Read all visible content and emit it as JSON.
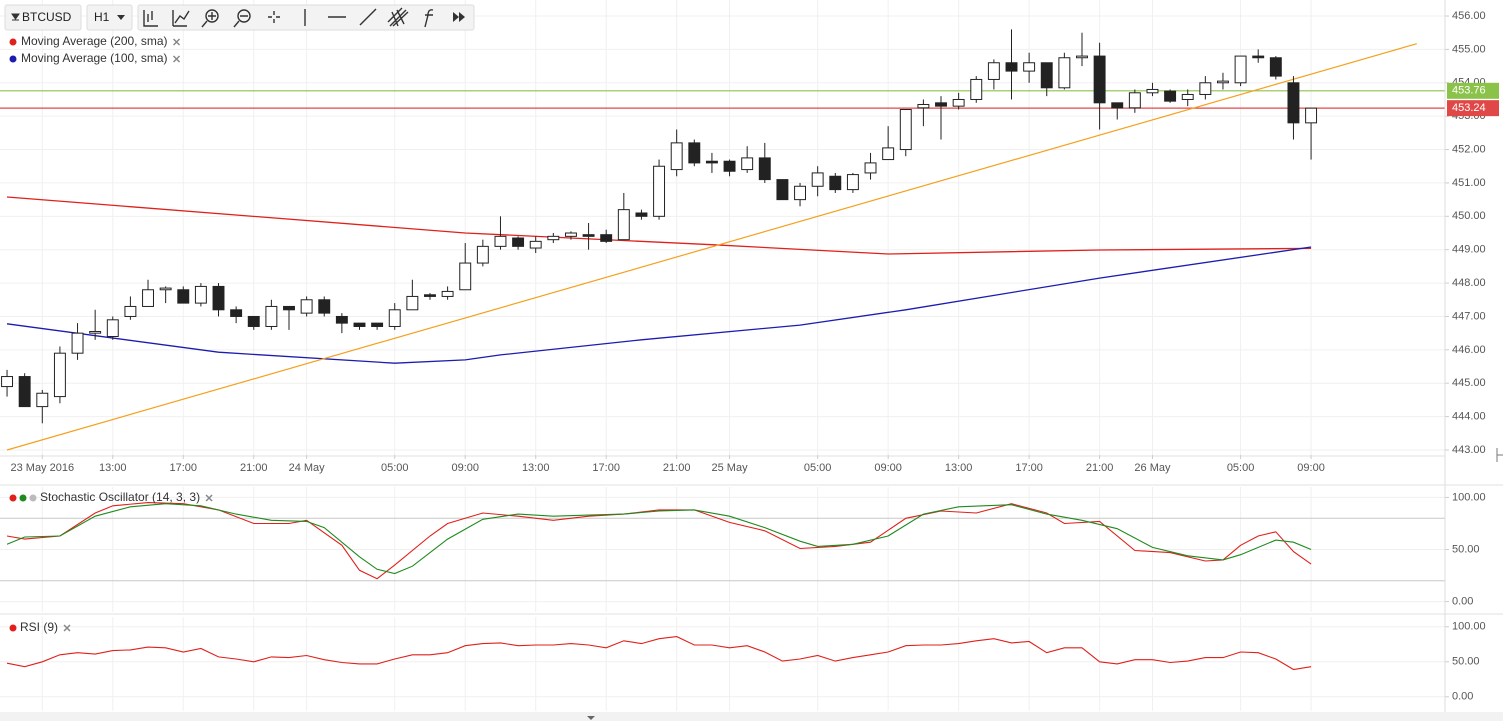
{
  "toolbar": {
    "symbol": "BTCUSD",
    "interval": "H1"
  },
  "chart_data": [
    {
      "type": "candlestick",
      "x": [
        7,
        8,
        9,
        10,
        11,
        12,
        13,
        14,
        15,
        16,
        17,
        18,
        19,
        20,
        21,
        22,
        23,
        24,
        25,
        26,
        27,
        28,
        29,
        30,
        31,
        32,
        33,
        34,
        35,
        36,
        37,
        38,
        39,
        40,
        41,
        42,
        43,
        44,
        45,
        46,
        47,
        48,
        49,
        50,
        51,
        52,
        53,
        54,
        55,
        56,
        57,
        58,
        59,
        60,
        61,
        62,
        63,
        64,
        65,
        66,
        67,
        68,
        69,
        70,
        71,
        72,
        73,
        74,
        75,
        76,
        77,
        78,
        79,
        80,
        81
      ],
      "open": [
        444.9,
        445.2,
        444.3,
        444.6,
        445.9,
        446.5,
        446.4,
        447.0,
        447.3,
        447.8,
        447.8,
        447.4,
        447.9,
        447.2,
        447.0,
        446.7,
        447.3,
        447.1,
        447.5,
        447.0,
        446.8,
        446.8,
        446.7,
        447.2,
        447.65,
        447.6,
        447.8,
        448.6,
        449.1,
        449.35,
        449.05,
        449.3,
        449.4,
        449.45,
        449.45,
        449.3,
        450.1,
        450.0,
        451.4,
        452.2,
        451.65,
        451.65,
        451.4,
        451.75,
        451.1,
        450.5,
        450.9,
        451.2,
        450.8,
        451.3,
        451.7,
        452.0,
        453.25,
        453.4,
        453.3,
        453.5,
        454.1,
        454.6,
        454.35,
        454.6,
        453.85,
        454.75,
        454.8,
        453.4,
        453.25,
        453.7,
        453.75,
        453.5,
        453.65,
        454.0,
        454.0,
        454.8,
        454.75,
        454.0,
        452.8
      ],
      "high": [
        445.4,
        445.3,
        444.8,
        446.1,
        446.8,
        447.2,
        447.0,
        447.6,
        448.1,
        447.9,
        447.9,
        448.0,
        448.0,
        447.3,
        447.0,
        447.5,
        447.3,
        447.6,
        447.6,
        447.1,
        446.8,
        446.8,
        447.4,
        448.1,
        447.7,
        447.9,
        449.2,
        449.3,
        450.0,
        449.4,
        449.4,
        449.5,
        449.55,
        449.8,
        449.6,
        450.7,
        450.2,
        451.7,
        452.6,
        452.3,
        451.9,
        451.7,
        452.1,
        452.2,
        451.1,
        451.0,
        451.5,
        451.3,
        451.3,
        451.9,
        452.7,
        453.2,
        453.5,
        453.6,
        453.7,
        454.2,
        454.7,
        455.6,
        454.9,
        454.6,
        454.9,
        455.5,
        455.2,
        453.4,
        453.8,
        454.0,
        453.8,
        453.8,
        454.2,
        454.3,
        454.8,
        455.0,
        454.8,
        454.2,
        453.24
      ],
      "low": [
        444.6,
        444.3,
        443.8,
        444.4,
        445.7,
        446.3,
        446.3,
        446.9,
        447.3,
        447.4,
        447.4,
        447.3,
        447.0,
        446.8,
        446.6,
        446.6,
        446.6,
        447.0,
        447.0,
        446.5,
        446.6,
        446.6,
        446.6,
        447.2,
        447.5,
        447.5,
        447.8,
        448.5,
        449.0,
        449.0,
        448.9,
        449.2,
        449.3,
        449.0,
        449.2,
        449.3,
        449.9,
        449.9,
        451.2,
        451.5,
        451.3,
        451.2,
        451.3,
        451.0,
        450.5,
        450.3,
        450.6,
        450.7,
        450.7,
        451.1,
        451.7,
        451.8,
        452.7,
        452.3,
        453.2,
        453.4,
        453.8,
        453.5,
        454.0,
        453.6,
        453.8,
        454.5,
        452.6,
        452.9,
        453.1,
        453.6,
        453.4,
        453.3,
        453.5,
        453.8,
        453.9,
        454.6,
        454.1,
        452.3,
        451.7
      ],
      "close": [
        445.2,
        444.3,
        444.7,
        445.9,
        446.5,
        446.55,
        446.9,
        447.3,
        447.8,
        447.85,
        447.4,
        447.9,
        447.2,
        447.0,
        446.7,
        447.3,
        447.2,
        447.5,
        447.1,
        446.8,
        446.7,
        446.7,
        447.2,
        447.6,
        447.6,
        447.75,
        448.6,
        449.1,
        449.4,
        449.1,
        449.25,
        449.4,
        449.5,
        449.4,
        449.25,
        450.2,
        450.0,
        451.5,
        452.2,
        451.6,
        451.6,
        451.35,
        451.75,
        451.1,
        450.5,
        450.9,
        451.3,
        450.8,
        451.25,
        451.6,
        452.05,
        453.2,
        453.35,
        453.3,
        453.5,
        454.1,
        454.6,
        454.35,
        454.6,
        453.85,
        454.75,
        454.8,
        453.4,
        453.25,
        453.7,
        453.8,
        453.45,
        453.65,
        454.0,
        454.05,
        454.8,
        454.75,
        454.2,
        452.8,
        453.24
      ],
      "up_color": "#ffffff",
      "down_color": "#222222",
      "series": [
        {
          "name": "Moving Average (200, sma)",
          "color": "#e0201b",
          "x": [
            7,
            33,
            47,
            57,
            69,
            81
          ],
          "values": [
            450.58,
            449.5,
            449.15,
            448.87,
            448.99,
            449.04
          ]
        },
        {
          "name": "Moving Average (100, sma)",
          "color": "#1c1cb0",
          "x": [
            7,
            19,
            29,
            33,
            35,
            43,
            52,
            58,
            69,
            81
          ],
          "values": [
            446.78,
            445.93,
            445.6,
            445.7,
            445.85,
            446.3,
            446.74,
            447.2,
            448.15,
            449.08
          ]
        }
      ],
      "trend_lines": [
        {
          "color": "#f5a01e",
          "x": [
            7,
            87
          ],
          "values": [
            443.0,
            455.17
          ]
        }
      ],
      "price_lines": [
        {
          "value": 453.76,
          "color": "#8bc34a"
        },
        {
          "value": 453.24,
          "color": "#e04848"
        }
      ],
      "xlim": [
        6.6,
        88.6
      ],
      "ylim": [
        442.85,
        456.48
      ],
      "xticks": [
        {
          "value": 9,
          "label": "23 May 2016"
        },
        {
          "value": 13,
          "label": "13:00"
        },
        {
          "value": 17,
          "label": "17:00"
        },
        {
          "value": 21,
          "label": "21:00"
        },
        {
          "value": 24,
          "label": "24 May"
        },
        {
          "value": 29,
          "label": "05:00"
        },
        {
          "value": 33,
          "label": "09:00"
        },
        {
          "value": 37,
          "label": "13:00"
        },
        {
          "value": 41,
          "label": "17:00"
        },
        {
          "value": 45,
          "label": "21:00"
        },
        {
          "value": 48,
          "label": "25 May"
        },
        {
          "value": 53,
          "label": "05:00"
        },
        {
          "value": 57,
          "label": "09:00"
        },
        {
          "value": 61,
          "label": "13:00"
        },
        {
          "value": 65,
          "label": "17:00"
        },
        {
          "value": 69,
          "label": "21:00"
        },
        {
          "value": 72,
          "label": "26 May"
        },
        {
          "value": 77,
          "label": "05:00"
        },
        {
          "value": 81,
          "label": "09:00"
        }
      ],
      "yticks": [
        {
          "value": 456,
          "label": "456.00"
        },
        {
          "value": 455,
          "label": "455.00"
        },
        {
          "value": 454,
          "label": "454.00"
        },
        {
          "value": 453,
          "label": "453.00"
        },
        {
          "value": 452,
          "label": "452.00"
        },
        {
          "value": 451,
          "label": "451.00"
        },
        {
          "value": 450,
          "label": "450.00"
        },
        {
          "value": 449,
          "label": "449.00"
        },
        {
          "value": 448,
          "label": "448.00"
        },
        {
          "value": 447,
          "label": "447.00"
        },
        {
          "value": 446,
          "label": "446.00"
        },
        {
          "value": 445,
          "label": "445.00"
        },
        {
          "value": 444,
          "label": "444.00"
        },
        {
          "value": 443,
          "label": "443.00"
        }
      ],
      "grid": true
    },
    {
      "type": "line",
      "title": "Stochastic Oscillator (14, 3, 3)",
      "series": [
        {
          "color": "#e0201b",
          "x": [
            7,
            8,
            10,
            12,
            13,
            15,
            17,
            19,
            21,
            23,
            24,
            26,
            27,
            28,
            29,
            31,
            32,
            34,
            36,
            38,
            40,
            42,
            44,
            46,
            48,
            50,
            52,
            54,
            56,
            58,
            60,
            62,
            64,
            66,
            67,
            69,
            71,
            73,
            75,
            76,
            77,
            78,
            79,
            80,
            81
          ],
          "values": [
            63,
            60,
            63,
            85,
            92,
            95,
            94,
            88,
            75,
            75,
            78,
            54,
            30,
            22,
            35,
            63,
            75,
            85,
            82,
            78,
            82,
            84,
            88,
            88,
            76,
            68,
            51,
            53,
            57,
            80,
            87,
            85,
            94,
            85,
            75,
            77,
            49,
            47,
            39,
            40,
            54,
            63,
            67,
            48,
            36
          ]
        },
        {
          "color": "#1f8a1f",
          "x": [
            7,
            8,
            10,
            12,
            14,
            16,
            18,
            20,
            22,
            24,
            25,
            27,
            28,
            29,
            30,
            32,
            34,
            36,
            38,
            40,
            42,
            44,
            46,
            48,
            50,
            52,
            53,
            55,
            57,
            59,
            61,
            64,
            66,
            68,
            70,
            72,
            74,
            76,
            77,
            79,
            80,
            81
          ],
          "values": [
            55,
            62,
            63,
            82,
            91,
            94,
            92,
            84,
            78,
            77,
            71,
            43,
            31,
            27,
            34,
            60,
            79,
            84,
            82,
            83,
            84,
            87,
            88,
            82,
            71,
            58,
            53,
            55,
            63,
            84,
            91,
            93,
            84,
            78,
            70,
            52,
            44,
            40,
            45,
            59,
            57,
            50
          ]
        }
      ],
      "bands": [
        80,
        20
      ],
      "xlim": [
        6.6,
        88.6
      ],
      "ylim": [
        -10,
        110
      ],
      "yticks": [
        {
          "value": 100,
          "label": "100.00"
        },
        {
          "value": 50,
          "label": "50.00"
        },
        {
          "value": 0,
          "label": "0.00"
        }
      ],
      "grid": true
    },
    {
      "type": "line",
      "title": "RSI (9)",
      "series": [
        {
          "color": "#e0201b",
          "x": [
            7,
            8,
            9,
            10,
            11,
            12,
            13,
            14,
            15,
            16,
            17,
            18,
            19,
            20,
            21,
            22,
            23,
            24,
            25,
            26,
            27,
            28,
            29,
            30,
            31,
            32,
            33,
            34,
            35,
            36,
            37,
            38,
            39,
            40,
            41,
            42,
            43,
            44,
            45,
            46,
            47,
            48,
            49,
            50,
            51,
            52,
            53,
            54,
            55,
            56,
            57,
            58,
            59,
            60,
            61,
            62,
            63,
            64,
            65,
            66,
            67,
            68,
            69,
            70,
            71,
            72,
            73,
            74,
            75,
            76,
            77,
            78,
            79,
            80,
            81
          ],
          "values": [
            48,
            43,
            50,
            60,
            63,
            61,
            66,
            67,
            71,
            70,
            64,
            69,
            57,
            54,
            50,
            57,
            56,
            59,
            53,
            49,
            47,
            47,
            54,
            60,
            60,
            63,
            73,
            76,
            77,
            73,
            74,
            74,
            76,
            74,
            70,
            80,
            76,
            83,
            86,
            74,
            74,
            70,
            73,
            64,
            51,
            54,
            59,
            51,
            56,
            60,
            64,
            73,
            74,
            74,
            76,
            80,
            83,
            77,
            79,
            63,
            70,
            70,
            50,
            47,
            53,
            53,
            49,
            51,
            56,
            56,
            64,
            63,
            54,
            39,
            43
          ]
        }
      ],
      "xlim": [
        6.6,
        88.6
      ],
      "ylim": [
        -20,
        114
      ],
      "yticks": [
        {
          "value": 100,
          "label": "100.00"
        },
        {
          "value": 50,
          "label": "50.00"
        },
        {
          "value": 0,
          "label": "0.00"
        }
      ],
      "grid": true
    }
  ]
}
